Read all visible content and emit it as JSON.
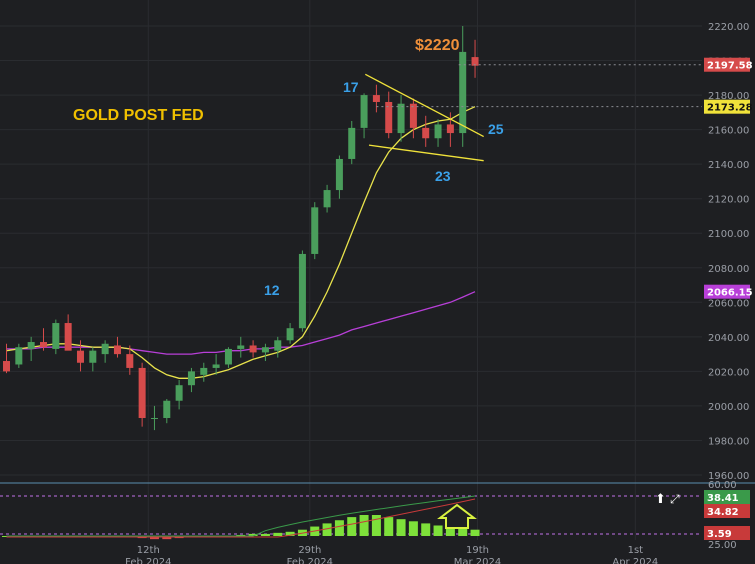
{
  "chart_data": {
    "type": "candlestick",
    "title": "GOLD POST FED",
    "price_axis": {
      "ylim": [
        1955,
        2225
      ],
      "ticks": [
        1960,
        1980,
        2000,
        2020,
        2040,
        2060,
        2080,
        2100,
        2120,
        2140,
        2160,
        2180,
        2200,
        2220
      ],
      "tick_labels": [
        "1960.00",
        "1980.00",
        "2000.00",
        "2020.00",
        "2040.00",
        "2060.00",
        "2080.00",
        "2100.00",
        "2120.00",
        "2140.00",
        "2160.00",
        "2180.00",
        "2200.00",
        "2220.00"
      ]
    },
    "x_axis": {
      "labels": [
        {
          "day": "12th",
          "month": "Feb 2024",
          "index": 11.5
        },
        {
          "day": "29th",
          "month": "Feb 2024",
          "index": 24.6
        },
        {
          "day": "19th",
          "month": "Mar 2024",
          "index": 38.2
        },
        {
          "day": "1st",
          "month": "Apr 2024",
          "index": 51.0
        }
      ]
    },
    "candles": [
      [
        2026,
        2036,
        2019,
        2020
      ],
      [
        2024,
        2036,
        2022,
        2034
      ],
      [
        2033,
        2040,
        2026,
        2037
      ],
      [
        2037,
        2045,
        2032,
        2034
      ],
      [
        2033,
        2050,
        2030,
        2048
      ],
      [
        2048,
        2053,
        2033,
        2032
      ],
      [
        2032,
        2038,
        2020,
        2025
      ],
      [
        2025,
        2034,
        2020,
        2032
      ],
      [
        2030,
        2038,
        2025,
        2036
      ],
      [
        2035,
        2040,
        2028,
        2030
      ],
      [
        2030,
        2035,
        2018,
        2022
      ],
      [
        2022,
        2025,
        1988,
        1993
      ],
      [
        1993,
        2000,
        1986,
        1993
      ],
      [
        1993,
        2004,
        1990,
        2003
      ],
      [
        2003,
        2015,
        1998,
        2012
      ],
      [
        2012,
        2022,
        2008,
        2020
      ],
      [
        2018,
        2025,
        2014,
        2022
      ],
      [
        2022,
        2030,
        2018,
        2024
      ],
      [
        2024,
        2034,
        2022,
        2033
      ],
      [
        2033,
        2040,
        2028,
        2035
      ],
      [
        2035,
        2038,
        2028,
        2031
      ],
      [
        2031,
        2036,
        2026,
        2034
      ],
      [
        2032,
        2040,
        2028,
        2038
      ],
      [
        2038,
        2048,
        2036,
        2045
      ],
      [
        2045,
        2090,
        2043,
        2088
      ],
      [
        2088,
        2118,
        2085,
        2115
      ],
      [
        2115,
        2128,
        2112,
        2125
      ],
      [
        2125,
        2145,
        2120,
        2143
      ],
      [
        2143,
        2165,
        2140,
        2161
      ],
      [
        2161,
        2181,
        2155,
        2180
      ],
      [
        2180,
        2186,
        2170,
        2176
      ],
      [
        2176,
        2182,
        2155,
        2158
      ],
      [
        2158,
        2180,
        2153,
        2175
      ],
      [
        2175,
        2178,
        2155,
        2161
      ],
      [
        2161,
        2168,
        2150,
        2155
      ],
      [
        2155,
        2166,
        2150,
        2163
      ],
      [
        2163,
        2170,
        2150,
        2158
      ],
      [
        2158,
        2220,
        2150,
        2205
      ],
      [
        2202,
        2212,
        2190,
        2197
      ]
    ],
    "ma_fast": [
      2032,
      2033,
      2034,
      2035,
      2036,
      2036,
      2035,
      2034,
      2034,
      2034,
      2033,
      2028,
      2022,
      2018,
      2016,
      2016,
      2017,
      2019,
      2021,
      2024,
      2027,
      2029,
      2031,
      2034,
      2040,
      2052,
      2066,
      2082,
      2100,
      2118,
      2135,
      2147,
      2155,
      2160,
      2163,
      2165,
      2166,
      2170,
      2173.28
    ],
    "ma_slow": [
      2033,
      2033,
      2033,
      2034,
      2034,
      2034,
      2034,
      2034,
      2034,
      2034,
      2033,
      2032,
      2031,
      2030,
      2030,
      2030,
      2031,
      2031,
      2032,
      2032,
      2033,
      2033,
      2034,
      2034,
      2035,
      2037,
      2039,
      2041,
      2044,
      2046,
      2048,
      2050,
      2052,
      2054,
      2056,
      2058,
      2060,
      2063,
      2066.15
    ],
    "last_price": "2197.58",
    "ma_fast_label": "2173.28",
    "ma_slow_label": "2066.15",
    "colors": {
      "up": "#4a9e5c",
      "down": "#d64b4b",
      "ma_fast": "#e9e34c",
      "ma_slow": "#b83fd8",
      "wedge": "#f0e23a",
      "blue": "#3aa0e8",
      "orange": "#f0903a"
    },
    "annotations": [
      {
        "text": "17",
        "color": "blue"
      },
      {
        "text": "12",
        "color": "blue"
      },
      {
        "text": "23",
        "color": "blue"
      },
      {
        "text": "25",
        "color": "blue"
      },
      {
        "text": "$2220",
        "color": "orange"
      }
    ],
    "indicator": {
      "histogram": [
        0,
        0,
        0,
        0,
        0,
        0,
        0,
        0,
        0,
        0,
        0,
        -1,
        -1.5,
        -1.5,
        -1,
        0,
        0,
        0,
        0,
        0.5,
        1,
        1,
        1.5,
        2,
        3,
        4.5,
        6,
        7.5,
        9,
        10,
        10,
        9,
        8,
        7,
        6,
        5,
        4,
        4,
        3
      ],
      "line1_value": "38.41",
      "line2_value": "34.82",
      "hist_value": "3.59",
      "top_tick": "60.00",
      "bottom_tick": "25.00"
    }
  }
}
